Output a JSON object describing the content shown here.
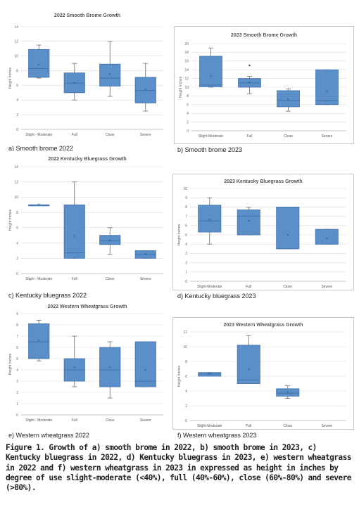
{
  "caption": "Figure 1. Growth of a) smooth brome in 2022, b) smooth brome in 2023, c) Kentucky bluegrass in 2022, d) Kentucky bluegrass in 2023, e) western wheatgrass in 2022 and f) western wheatgrass in 2023 in expressed as height in inches by degree of use slight-moderate (<40%), full (40%-60%), close (60%-80%) and severe (>80%).",
  "colors": {
    "box_fill": "#5b8fc9",
    "box_stroke": "#3f6fa8",
    "whisker": "#6d6d6d",
    "grid": "#dedede"
  },
  "panels": [
    {
      "label": "a) Smooth brome 2022"
    },
    {
      "label": "b) Smooth brome 2023"
    },
    {
      "label": "c) Kentucky bluegrass 2022"
    },
    {
      "label": "d) Kentucky bluegrass 2023"
    },
    {
      "label": "e) Western wheatgrass 2022"
    },
    {
      "label": "f) Western wheatgrass 2023"
    }
  ],
  "chart_data": [
    {
      "type": "box",
      "title": "2022 Smooth Brome Growth",
      "ylabel": "Height Inches",
      "ylim": [
        0,
        14
      ],
      "ytick_step": 2,
      "categories": [
        "Slight - Moderate",
        "Full",
        "Close",
        "Severe"
      ],
      "boxes": [
        {
          "min": 7.0,
          "q1": 7.1,
          "median": 8.3,
          "q3": 10.9,
          "max": 11.5,
          "mean": 8.8
        },
        {
          "min": 4.0,
          "q1": 5.0,
          "median": 6.3,
          "q3": 7.7,
          "max": 9.0,
          "mean": 6.3
        },
        {
          "min": 4.5,
          "q1": 5.9,
          "median": 7.0,
          "q3": 8.9,
          "max": 12.0,
          "mean": 7.5
        },
        {
          "min": 2.5,
          "q1": 3.6,
          "median": 5.3,
          "q3": 7.1,
          "max": 9.0,
          "mean": 5.4
        }
      ]
    },
    {
      "type": "box",
      "title": "2023 Smooth Brome Growth",
      "ylabel": "Height Inches",
      "ylim": [
        0,
        20
      ],
      "ytick_step": 2,
      "categories": [
        "Slight-Moderate",
        "Full",
        "Close",
        "Severe"
      ],
      "boxes": [
        {
          "min": 10.0,
          "q1": 10.1,
          "median": 10.5,
          "q3": 17.1,
          "max": 19.0,
          "mean": 12.5
        },
        {
          "min": 8.5,
          "q1": 10.0,
          "median": 11.0,
          "q3": 12.0,
          "max": 12.5,
          "mean": 11.0,
          "outliers": [
            15.0
          ]
        },
        {
          "min": 4.5,
          "q1": 5.5,
          "median": 7.0,
          "q3": 9.2,
          "max": 9.6,
          "mean": 7.2
        },
        {
          "min": 6.0,
          "q1": 6.0,
          "median": 7.0,
          "q3": 14.0,
          "max": 14.0,
          "mean": 9.0
        }
      ]
    },
    {
      "type": "box",
      "title": "2022 Kentucky Bluegrass Growth",
      "ylabel": "Height Inches",
      "ylim": [
        0,
        14
      ],
      "ytick_step": 2,
      "categories": [
        "Slight - Moderate",
        "Full",
        "Close",
        "Severe"
      ],
      "boxes": [
        {
          "min": 9.0,
          "q1": 9.0,
          "median": 9.0,
          "q3": 9.0,
          "max": 9.0,
          "mean": 9.0
        },
        {
          "min": 2.0,
          "q1": 2.0,
          "median": 2.7,
          "q3": 9.0,
          "max": 12.0,
          "mean": 4.9
        },
        {
          "min": 2.5,
          "q1": 3.8,
          "median": 4.3,
          "q3": 5.0,
          "max": 6.0,
          "mean": 4.3
        },
        {
          "min": 2.0,
          "q1": 2.0,
          "median": 2.5,
          "q3": 3.0,
          "max": 3.0,
          "mean": 2.5
        }
      ]
    },
    {
      "type": "box",
      "title": "2023 Kentucky Bluegrass Growth",
      "ylabel": "Height Inches",
      "ylim": [
        0,
        10
      ],
      "ytick_step": 1,
      "categories": [
        "Slight-Moderate",
        "Full",
        "Close",
        "Severe"
      ],
      "boxes": [
        {
          "min": 4.0,
          "q1": 5.3,
          "median": 6.5,
          "q3": 8.2,
          "max": 9.0,
          "mean": 6.6
        },
        {
          "min": 5.0,
          "q1": 5.0,
          "median": 7.0,
          "q3": 7.7,
          "max": 8.0,
          "mean": 6.5
        },
        {
          "min": 3.5,
          "q1": 3.5,
          "median": 3.5,
          "q3": 8.0,
          "max": 8.0,
          "mean": 5.0
        },
        {
          "min": 4.0,
          "q1": 4.0,
          "median": 4.0,
          "q3": 5.6,
          "max": 5.6,
          "mean": 4.6
        }
      ]
    },
    {
      "type": "box",
      "title": "2022 Western Wheatgrass Growth",
      "ylabel": "Height Inches",
      "ylim": [
        0,
        9
      ],
      "ytick_step": 1,
      "categories": [
        "Slight - Moderate",
        "Full",
        "Close",
        "Severe"
      ],
      "boxes": [
        {
          "min": 4.8,
          "q1": 5.0,
          "median": 6.5,
          "q3": 8.1,
          "max": 8.4,
          "mean": 6.6
        },
        {
          "min": 2.5,
          "q1": 3.0,
          "median": 4.0,
          "q3": 5.0,
          "max": 7.0,
          "mean": 4.2
        },
        {
          "min": 1.5,
          "q1": 2.5,
          "median": 4.0,
          "q3": 6.0,
          "max": 6.5,
          "mean": 4.2
        },
        {
          "min": 2.5,
          "q1": 2.5,
          "median": 3.0,
          "q3": 6.5,
          "max": 6.5,
          "mean": 4.0
        }
      ]
    },
    {
      "type": "box",
      "title": "2023 Western Wheatgrass Growth",
      "ylabel": "Height Inches",
      "ylim": [
        0,
        12
      ],
      "ytick_step": 2,
      "categories": [
        "Slight-Moderate",
        "Full",
        "Close",
        "Severe"
      ],
      "boxes": [
        {
          "min": 6.0,
          "q1": 6.0,
          "median": 6.3,
          "q3": 6.5,
          "max": 6.5,
          "mean": 6.3
        },
        {
          "min": 5.0,
          "q1": 5.0,
          "median": 5.5,
          "q3": 10.2,
          "max": 11.5,
          "mean": 6.9
        },
        {
          "min": 3.0,
          "q1": 3.3,
          "median": 3.7,
          "q3": 4.3,
          "max": 4.7,
          "mean": 3.8
        },
        null
      ]
    }
  ]
}
